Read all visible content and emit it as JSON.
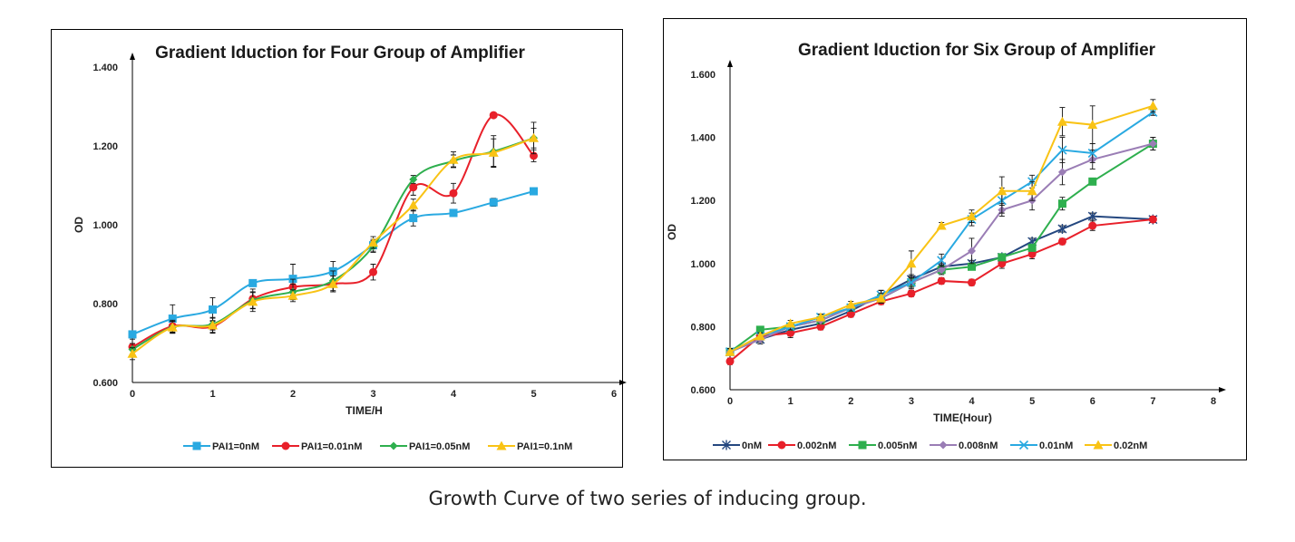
{
  "caption": "Growth Curve of two series of inducing group.",
  "chart_data": [
    {
      "type": "line",
      "title": "Gradient Iduction for Four Group of Amplifier",
      "xlabel": "TIME/H",
      "ylabel": "OD",
      "xlim": [
        0,
        6
      ],
      "ylim": [
        0.6,
        1.4
      ],
      "xticks": [
        0,
        1,
        2,
        3,
        4,
        5,
        6
      ],
      "yticks": [
        "0.600",
        "0.800",
        "1.000",
        "1.200",
        "1.400"
      ],
      "ytick_values": [
        0.6,
        0.8,
        1.0,
        1.2,
        1.4
      ],
      "legend_position": "bottom",
      "x": [
        0,
        0.5,
        1,
        1.5,
        2,
        2.5,
        3,
        3.5,
        4,
        4.5,
        5
      ],
      "series": [
        {
          "name": "PAI1=0nM",
          "color": "#29A9E1",
          "marker": "square",
          "values": [
            0.722,
            0.762,
            0.785,
            0.852,
            0.863,
            0.882,
            0.948,
            1.017,
            1.03,
            1.057,
            1.085
          ],
          "errors": [
            0.0,
            0.035,
            0.03,
            0.005,
            0.037,
            0.025,
            0.015,
            0.02,
            0.005,
            0.01,
            0.005
          ]
        },
        {
          "name": "PAI1=0.01nM",
          "color": "#E8202A",
          "marker": "circle",
          "values": [
            0.69,
            0.743,
            0.742,
            0.812,
            0.842,
            0.85,
            0.88,
            1.095,
            1.08,
            1.278,
            1.175
          ],
          "errors": [
            0.02,
            0.015,
            0.015,
            0.025,
            0.02,
            0.02,
            0.02,
            0.02,
            0.025,
            0.005,
            0.015
          ]
        },
        {
          "name": "PAI1=0.05nM",
          "color": "#2EAF4E",
          "marker": "diamond",
          "values": [
            0.684,
            0.74,
            0.748,
            0.808,
            0.83,
            0.858,
            0.945,
            1.115,
            1.162,
            1.186,
            1.22
          ],
          "errors": [
            0.015,
            0.015,
            0.015,
            0.02,
            0.02,
            0.025,
            0.015,
            0.01,
            0.015,
            0.04,
            0.025
          ]
        },
        {
          "name": "PAI1=0.1nM",
          "color": "#F9C315",
          "marker": "triangle",
          "values": [
            0.673,
            0.74,
            0.745,
            0.805,
            0.82,
            0.85,
            0.955,
            1.05,
            1.165,
            1.183,
            1.22
          ],
          "errors": [
            0.015,
            0.015,
            0.02,
            0.025,
            0.015,
            0.02,
            0.015,
            0.015,
            0.02,
            0.035,
            0.04
          ]
        }
      ]
    },
    {
      "type": "line",
      "title": "Gradient Iduction for Six Group of Amplifier",
      "xlabel": "TIME(Hour)",
      "ylabel": "OD",
      "xlim": [
        0,
        8
      ],
      "ylim": [
        0.6,
        1.6
      ],
      "xticks": [
        0,
        1,
        2,
        3,
        4,
        5,
        6,
        7,
        8
      ],
      "yticks": [
        "0.600",
        "0.800",
        "1.000",
        "1.200",
        "1.400",
        "1.600"
      ],
      "ytick_values": [
        0.6,
        0.8,
        1.0,
        1.2,
        1.4,
        1.6
      ],
      "legend_position": "bottom",
      "x": [
        0,
        0.5,
        1,
        1.5,
        2,
        2.5,
        3,
        3.5,
        4,
        4.5,
        5,
        5.5,
        6,
        7
      ],
      "series": [
        {
          "name": "0nM",
          "color": "#24477F",
          "marker": "star",
          "values": [
            0.72,
            0.76,
            0.79,
            0.81,
            0.85,
            0.9,
            0.95,
            0.99,
            1.0,
            1.02,
            1.07,
            1.11,
            1.15,
            1.14
          ],
          "errors": [
            0.01,
            0.015,
            0.02,
            0.015,
            0.01,
            0.015,
            0.015,
            0.01,
            0.01,
            0.01,
            0.01,
            0.01,
            0.01,
            0.01
          ]
        },
        {
          "name": "0.002nM",
          "color": "#E8202A",
          "marker": "circle",
          "values": [
            0.69,
            0.77,
            0.78,
            0.8,
            0.84,
            0.88,
            0.905,
            0.945,
            0.94,
            1.0,
            1.03,
            1.07,
            1.12,
            1.14
          ],
          "errors": [
            0.01,
            0.015,
            0.015,
            0.01,
            0.01,
            0.01,
            0.01,
            0.01,
            0.01,
            0.015,
            0.015,
            0.01,
            0.015,
            0.01
          ]
        },
        {
          "name": "0.005nM",
          "color": "#2EAF4E",
          "marker": "square",
          "values": [
            0.72,
            0.79,
            0.8,
            0.82,
            0.86,
            0.89,
            0.94,
            0.98,
            0.99,
            1.02,
            1.05,
            1.19,
            1.26,
            1.38
          ],
          "errors": [
            0.01,
            0.01,
            0.01,
            0.01,
            0.01,
            0.015,
            0.015,
            0.01,
            0.01,
            0.01,
            0.01,
            0.02,
            0.01,
            0.02
          ]
        },
        {
          "name": "0.008nM",
          "color": "#9A7DB5",
          "marker": "diamond",
          "values": [
            0.72,
            0.76,
            0.8,
            0.82,
            0.86,
            0.89,
            0.94,
            0.98,
            1.04,
            1.17,
            1.2,
            1.29,
            1.33,
            1.38
          ],
          "errors": [
            0.01,
            0.01,
            0.01,
            0.01,
            0.01,
            0.015,
            0.015,
            0.015,
            0.04,
            0.02,
            0.03,
            0.04,
            0.03,
            0.02
          ]
        },
        {
          "name": "0.01nM",
          "color": "#29A9E1",
          "marker": "x",
          "values": [
            0.72,
            0.77,
            0.8,
            0.83,
            0.86,
            0.9,
            0.94,
            1.01,
            1.14,
            1.2,
            1.26,
            1.36,
            1.35,
            1.48
          ],
          "errors": [
            0.01,
            0.01,
            0.01,
            0.01,
            0.01,
            0.015,
            0.02,
            0.02,
            0.02,
            0.04,
            0.02,
            0.04,
            0.03,
            0.01
          ]
        },
        {
          "name": "0.02nM",
          "color": "#F9C315",
          "marker": "triangle",
          "values": [
            0.72,
            0.77,
            0.81,
            0.83,
            0.87,
            0.89,
            1.0,
            1.12,
            1.15,
            1.23,
            1.23,
            1.45,
            1.44,
            1.5
          ],
          "errors": [
            0.01,
            0.01,
            0.01,
            0.01,
            0.01,
            0.015,
            0.04,
            0.01,
            0.02,
            0.045,
            0.03,
            0.045,
            0.06,
            0.02
          ]
        }
      ]
    }
  ]
}
